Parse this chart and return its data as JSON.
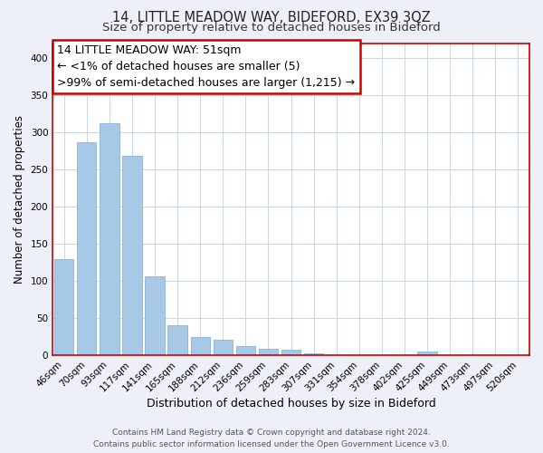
{
  "title": "14, LITTLE MEADOW WAY, BIDEFORD, EX39 3QZ",
  "subtitle": "Size of property relative to detached houses in Bideford",
  "xlabel": "Distribution of detached houses by size in Bideford",
  "ylabel": "Number of detached properties",
  "bar_labels": [
    "46sqm",
    "70sqm",
    "93sqm",
    "117sqm",
    "141sqm",
    "165sqm",
    "188sqm",
    "212sqm",
    "236sqm",
    "259sqm",
    "283sqm",
    "307sqm",
    "331sqm",
    "354sqm",
    "378sqm",
    "402sqm",
    "425sqm",
    "449sqm",
    "473sqm",
    "497sqm",
    "520sqm"
  ],
  "bar_heights": [
    130,
    287,
    312,
    268,
    106,
    40,
    25,
    21,
    13,
    9,
    8,
    3,
    0,
    0,
    0,
    0,
    5,
    0,
    0,
    0,
    0
  ],
  "bar_color": "#a8c8e8",
  "bar_edge_color": "#8ab4d4",
  "annotation_line1": "14 LITTLE MEADOW WAY: 51sqm",
  "annotation_line2": "← <1% of detached houses are smaller (5)",
  "annotation_line3": ">99% of semi-detached houses are larger (1,215) →",
  "annotation_box_color": "#ffffff",
  "annotation_box_edge_color": "#cc0000",
  "ylim": [
    0,
    420
  ],
  "yticks": [
    0,
    50,
    100,
    150,
    200,
    250,
    300,
    350,
    400
  ],
  "footer_line1": "Contains HM Land Registry data © Crown copyright and database right 2024.",
  "footer_line2": "Contains public sector information licensed under the Open Government Licence v3.0.",
  "bg_color": "#edf0f7",
  "plot_bg_color": "#ffffff",
  "grid_color": "#c8d4e8",
  "title_fontsize": 10.5,
  "subtitle_fontsize": 9.5,
  "ylabel_fontsize": 8.5,
  "xlabel_fontsize": 9,
  "tick_fontsize": 7.5,
  "annotation_fontsize": 9,
  "footer_fontsize": 6.5,
  "red_spine_color": "#cc0000"
}
